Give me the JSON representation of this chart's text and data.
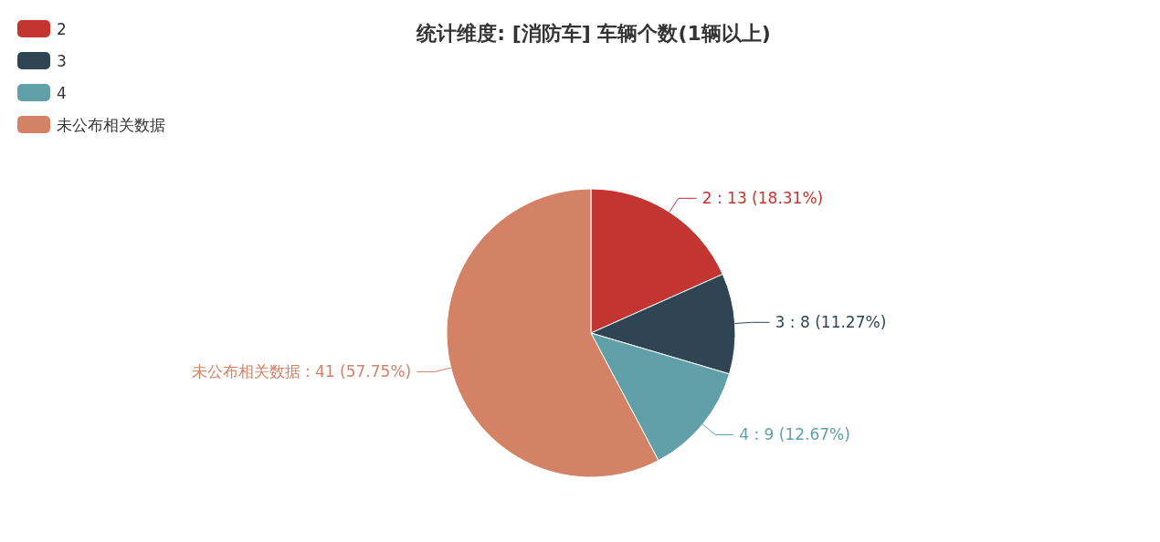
{
  "chart_data": {
    "type": "pie",
    "title": "统计维度: [消防车] 车辆个数(1辆以上)",
    "categories": [
      "2",
      "3",
      "4",
      "未公布相关数据"
    ],
    "values": [
      13,
      8,
      9,
      41
    ],
    "colors": [
      "#c23531",
      "#2f4554",
      "#61a0a8",
      "#d48265"
    ],
    "value_labels": [
      "2 : 13 (18.31%)",
      "3 : 8 (11.27%)",
      "4 : 9 (12.67%)",
      "未公布相关数据 : 41 (57.75%)"
    ],
    "legend": "top left"
  }
}
